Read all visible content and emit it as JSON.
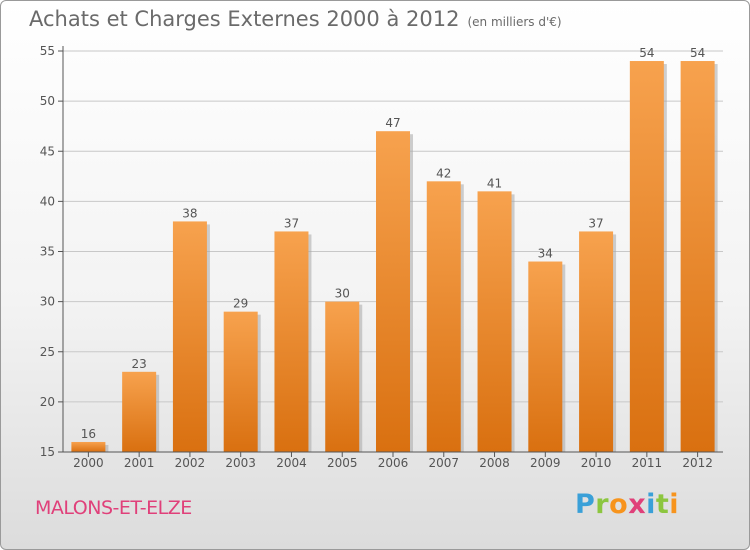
{
  "title": "Achats et Charges Externes 2000 à 2012",
  "unit_note": "(en milliers d'€)",
  "place_name": "MALONS-ET-ELZE",
  "logo": {
    "text": "Proxiti",
    "letters": [
      "P",
      "r",
      "o",
      "x",
      "i",
      "t",
      "i"
    ],
    "letter_colors": [
      "#3aa0d8",
      "#8cc63f",
      "#f7941d",
      "#e0407a",
      "#3aa0d8",
      "#8cc63f",
      "#f7941d"
    ]
  },
  "colors": {
    "bar_top": "#f7a24e",
    "bar_bottom": "#d97010",
    "bar_shadow": "#a8a8a8",
    "axis": "#555555",
    "text": "#555555",
    "grid": "#c8c8c8",
    "place": "#e0407a"
  },
  "chart_data": {
    "type": "bar",
    "title": "Achats et Charges Externes 2000 à 2012",
    "subtitle": "(en milliers d'€)",
    "xlabel": "",
    "ylabel": "",
    "categories": [
      "2000",
      "2001",
      "2002",
      "2003",
      "2004",
      "2005",
      "2006",
      "2007",
      "2008",
      "2009",
      "2010",
      "2011",
      "2012"
    ],
    "values": [
      16,
      23,
      38,
      29,
      37,
      30,
      47,
      42,
      41,
      34,
      37,
      54,
      54
    ],
    "data_labels": [
      "16",
      "23",
      "38",
      "29",
      "37",
      "30",
      "47",
      "42",
      "41",
      "34",
      "37",
      "54",
      "54"
    ],
    "ylim": [
      15,
      55
    ],
    "yticks": [
      15,
      20,
      25,
      30,
      35,
      40,
      45,
      50,
      55
    ],
    "ytick_labels": [
      "15",
      "20",
      "25",
      "30",
      "35",
      "40",
      "45",
      "50",
      "55"
    ],
    "grid": true,
    "legend": "none"
  }
}
